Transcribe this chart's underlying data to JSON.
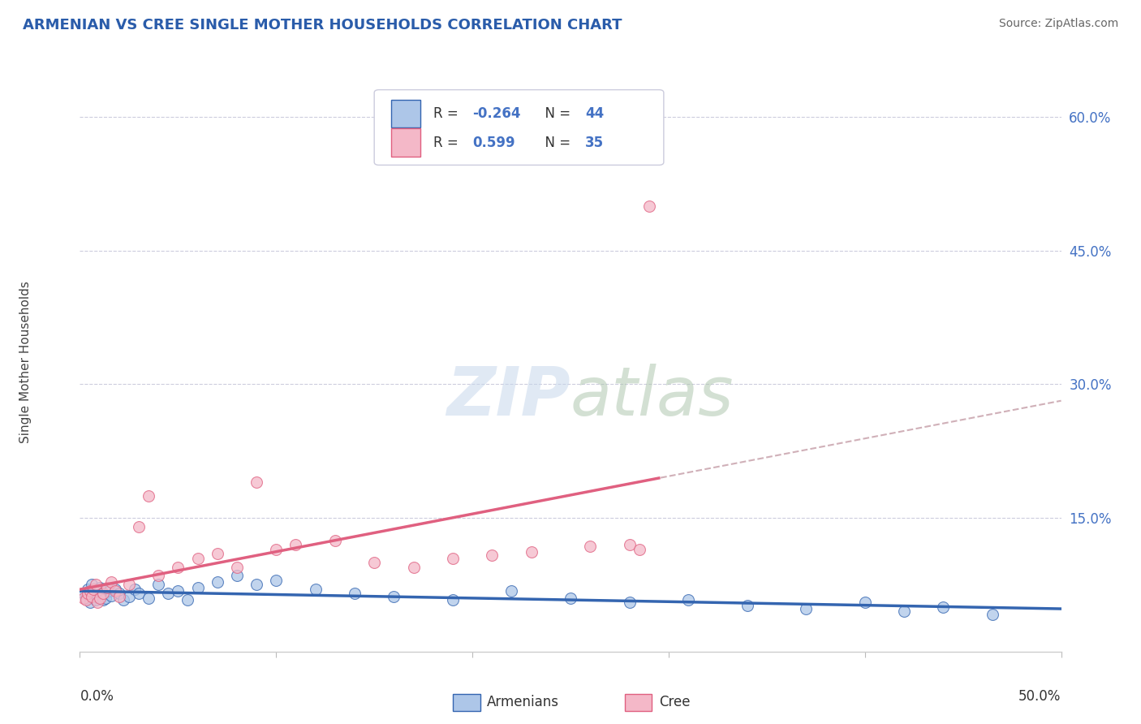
{
  "title": "ARMENIAN VS CREE SINGLE MOTHER HOUSEHOLDS CORRELATION CHART",
  "source": "Source: ZipAtlas.com",
  "ylabel": "Single Mother Households",
  "ytick_labels": [
    "15.0%",
    "30.0%",
    "45.0%",
    "60.0%"
  ],
  "ytick_values": [
    0.15,
    0.3,
    0.45,
    0.6
  ],
  "xlim": [
    0.0,
    0.5
  ],
  "ylim": [
    0.0,
    0.65
  ],
  "legend_armenians": "Armenians",
  "legend_cree": "Cree",
  "R_armenians": -0.264,
  "N_armenians": 44,
  "R_cree": 0.599,
  "N_cree": 35,
  "color_armenians": "#adc6e8",
  "color_cree": "#f4b8c8",
  "color_line_armenians": "#3465b0",
  "color_line_cree": "#e06080",
  "color_dashed": "#d0b0b8",
  "armenians_x": [
    0.002,
    0.003,
    0.004,
    0.005,
    0.006,
    0.007,
    0.008,
    0.009,
    0.01,
    0.011,
    0.012,
    0.013,
    0.015,
    0.016,
    0.018,
    0.02,
    0.022,
    0.025,
    0.028,
    0.03,
    0.035,
    0.04,
    0.045,
    0.05,
    0.055,
    0.06,
    0.07,
    0.08,
    0.09,
    0.1,
    0.12,
    0.14,
    0.16,
    0.19,
    0.22,
    0.25,
    0.28,
    0.31,
    0.34,
    0.37,
    0.4,
    0.42,
    0.44,
    0.465
  ],
  "armenians_y": [
    0.065,
    0.06,
    0.07,
    0.055,
    0.075,
    0.068,
    0.058,
    0.062,
    0.072,
    0.065,
    0.058,
    0.06,
    0.068,
    0.063,
    0.07,
    0.065,
    0.058,
    0.062,
    0.07,
    0.065,
    0.06,
    0.075,
    0.065,
    0.068,
    0.058,
    0.072,
    0.078,
    0.085,
    0.075,
    0.08,
    0.07,
    0.065,
    0.062,
    0.058,
    0.068,
    0.06,
    0.055,
    0.058,
    0.052,
    0.048,
    0.055,
    0.045,
    0.05,
    0.042
  ],
  "cree_x": [
    0.002,
    0.003,
    0.004,
    0.005,
    0.006,
    0.007,
    0.008,
    0.009,
    0.01,
    0.012,
    0.014,
    0.016,
    0.018,
    0.02,
    0.025,
    0.03,
    0.035,
    0.04,
    0.05,
    0.06,
    0.07,
    0.08,
    0.09,
    0.1,
    0.11,
    0.13,
    0.15,
    0.17,
    0.19,
    0.21,
    0.23,
    0.26,
    0.28,
    0.285,
    0.29
  ],
  "cree_y": [
    0.06,
    0.058,
    0.065,
    0.068,
    0.062,
    0.07,
    0.075,
    0.055,
    0.06,
    0.065,
    0.072,
    0.078,
    0.068,
    0.062,
    0.075,
    0.14,
    0.175,
    0.085,
    0.095,
    0.105,
    0.11,
    0.095,
    0.19,
    0.115,
    0.12,
    0.125,
    0.1,
    0.095,
    0.105,
    0.108,
    0.112,
    0.118,
    0.12,
    0.115,
    0.5
  ]
}
